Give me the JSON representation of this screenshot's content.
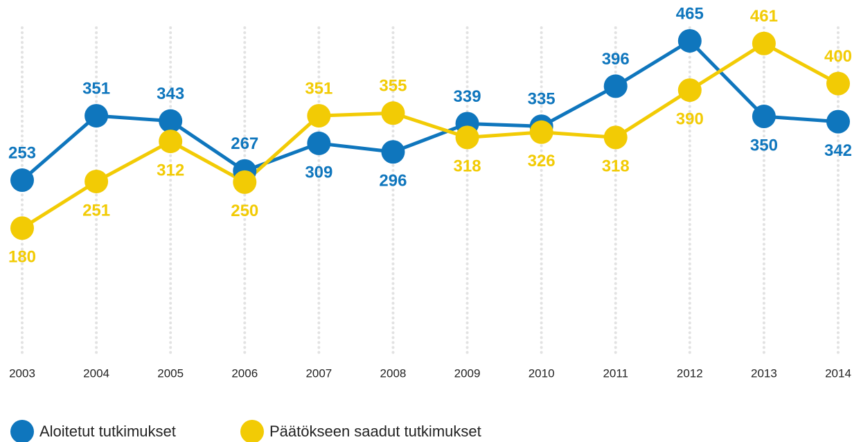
{
  "chart_data": {
    "type": "line",
    "categories": [
      "2003",
      "2004",
      "2005",
      "2006",
      "2007",
      "2008",
      "2009",
      "2010",
      "2011",
      "2012",
      "2013",
      "2014"
    ],
    "series": [
      {
        "name": "Aloitetut tutkimukset",
        "color": "#0f76bd",
        "values": [
          253,
          351,
          343,
          267,
          309,
          296,
          339,
          335,
          396,
          465,
          350,
          342
        ]
      },
      {
        "name": "Päätökseen saadut tutkimukset",
        "color": "#f2cb05",
        "values": [
          180,
          251,
          312,
          250,
          351,
          355,
          318,
          326,
          318,
          390,
          461,
          400
        ]
      }
    ],
    "ylim": [
      0,
      485
    ],
    "grid": true
  }
}
